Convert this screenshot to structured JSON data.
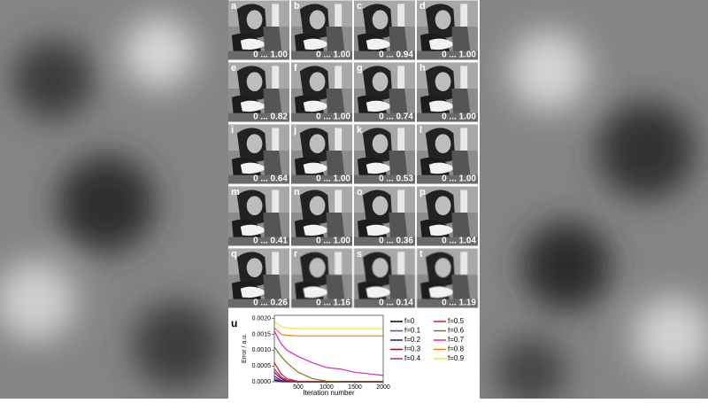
{
  "panels": [
    {
      "letter": "a",
      "range": "0 ... 1.00"
    },
    {
      "letter": "b",
      "range": "0 ... 1.00"
    },
    {
      "letter": "c",
      "range": "0 ... 0.94"
    },
    {
      "letter": "d",
      "range": "0 ... 1.00"
    },
    {
      "letter": "e",
      "range": "0 ... 0.82"
    },
    {
      "letter": "f",
      "range": "0 ... 1.00"
    },
    {
      "letter": "g",
      "range": "0 ... 0.74"
    },
    {
      "letter": "h",
      "range": "0 ... 1.00"
    },
    {
      "letter": "i",
      "range": "0 ... 0.64"
    },
    {
      "letter": "j",
      "range": "0 ... 1.00"
    },
    {
      "letter": "k",
      "range": "0 ... 0.53"
    },
    {
      "letter": "l",
      "range": "0 ... 1.00"
    },
    {
      "letter": "m",
      "range": "0 ... 0.41"
    },
    {
      "letter": "n",
      "range": "0 ... 1.00"
    },
    {
      "letter": "o",
      "range": "0 ... 0.36"
    },
    {
      "letter": "p",
      "range": "0 ... 1.04"
    },
    {
      "letter": "q",
      "range": "0 ... 0.26"
    },
    {
      "letter": "r",
      "range": "0 ... 1.16"
    },
    {
      "letter": "s",
      "range": "0 ... 0.14"
    },
    {
      "letter": "t",
      "range": "0 ... 1.19"
    }
  ],
  "chart_data": {
    "type": "line",
    "panel_letter": "u",
    "x_label": "Iteration number",
    "y_label": "Error / a.u.",
    "x": [
      80,
      200,
      300,
      500,
      750,
      1000,
      1250,
      1500,
      1750,
      2000
    ],
    "xlim": [
      80,
      2000
    ],
    "xticks": [
      500,
      1000,
      1500,
      2000
    ],
    "ylim": [
      0,
      0.0021
    ],
    "yticks": [
      {
        "value": 0,
        "label": "0.0000"
      },
      {
        "value": 0.0005,
        "label": "0.0005"
      },
      {
        "value": 0.001,
        "label": "0.0010"
      },
      {
        "value": 0.0015,
        "label": "0.0015"
      },
      {
        "value": 0.002,
        "label": "0.0020"
      }
    ],
    "series": [
      {
        "name": "f=0",
        "color": "#000000",
        "values": [
          5e-05,
          0,
          0,
          0,
          0,
          0,
          0,
          0,
          0,
          0
        ]
      },
      {
        "name": "f=0.1",
        "color": "#7b2fd0",
        "values": [
          0.0001,
          2e-05,
          0,
          0,
          0,
          0,
          0,
          0,
          0,
          0
        ]
      },
      {
        "name": "f=0.2",
        "color": "#1c1c8f",
        "values": [
          0.00018,
          4e-05,
          1e-05,
          0,
          0,
          0,
          0,
          0,
          0,
          0
        ]
      },
      {
        "name": "f=0.3",
        "color": "#8b0a2a",
        "values": [
          0.0003,
          0.0001,
          3e-05,
          0,
          0,
          0,
          0,
          0,
          0,
          0
        ]
      },
      {
        "name": "f=0.4",
        "color": "#b0208a",
        "values": [
          0.0004,
          0.00015,
          5e-05,
          0,
          0,
          0,
          0,
          0,
          0,
          0
        ]
      },
      {
        "name": "f=0.5",
        "color": "#d02020",
        "values": [
          0.0006,
          0.00025,
          0.0001,
          1e-05,
          0,
          0,
          0,
          0,
          0,
          0
        ]
      },
      {
        "name": "f=0.6",
        "color": "#7a7a10",
        "values": [
          0.0011,
          0.0008,
          0.0006,
          0.0003,
          0.0001,
          2e-05,
          0,
          0,
          0,
          0
        ]
      },
      {
        "name": "f=0.7",
        "color": "#e020c0",
        "values": [
          0.0016,
          0.0012,
          0.001,
          0.0008,
          0.0006,
          0.00045,
          0.0004,
          0.0003,
          0.00025,
          0.0002
        ]
      },
      {
        "name": "f=0.8",
        "color": "#f08010",
        "values": [
          0.0017,
          0.0015,
          0.00147,
          0.00145,
          0.00145,
          0.00145,
          0.00145,
          0.00145,
          0.00145,
          0.00145
        ]
      },
      {
        "name": "f=0.9",
        "color": "#f4e040",
        "values": [
          0.0019,
          0.00175,
          0.0017,
          0.00168,
          0.00168,
          0.00168,
          0.00168,
          0.00168,
          0.00168,
          0.00168
        ]
      }
    ]
  }
}
